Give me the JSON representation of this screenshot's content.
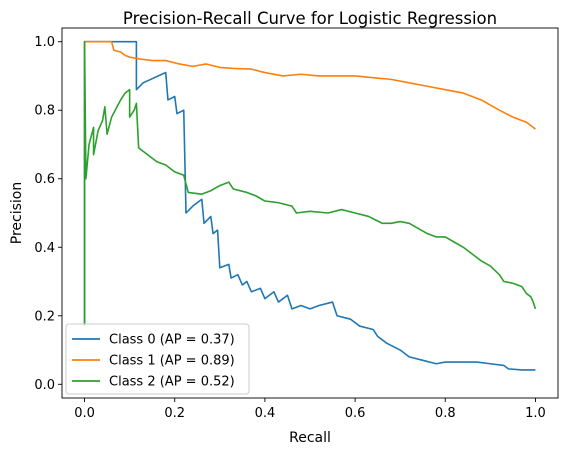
{
  "chart_data": {
    "type": "line",
    "title": "Precision-Recall Curve for Logistic Regression",
    "xlabel": "Recall",
    "ylabel": "Precision",
    "xlim": [
      -0.05,
      1.05
    ],
    "ylim": [
      -0.04,
      1.04
    ],
    "xticks": [
      {
        "value": 0.0,
        "label": "0.0"
      },
      {
        "value": 0.2,
        "label": "0.2"
      },
      {
        "value": 0.4,
        "label": "0.4"
      },
      {
        "value": 0.6,
        "label": "0.6"
      },
      {
        "value": 0.8,
        "label": "0.8"
      },
      {
        "value": 1.0,
        "label": "1.0"
      }
    ],
    "yticks": [
      {
        "value": 0.0,
        "label": "0.0"
      },
      {
        "value": 0.2,
        "label": "0.2"
      },
      {
        "value": 0.4,
        "label": "0.4"
      },
      {
        "value": 0.6,
        "label": "0.6"
      },
      {
        "value": 0.8,
        "label": "0.8"
      },
      {
        "value": 1.0,
        "label": "1.0"
      }
    ],
    "grid": false,
    "legend_position": "lower-left",
    "series": [
      {
        "name": "Class 0 (AP = 0.37)",
        "color": "#1f77b4",
        "points": [
          [
            0.0,
            0.17
          ],
          [
            0.0,
            1.0
          ],
          [
            0.115,
            1.0
          ],
          [
            0.115,
            0.86
          ],
          [
            0.13,
            0.88
          ],
          [
            0.18,
            0.91
          ],
          [
            0.185,
            0.83
          ],
          [
            0.2,
            0.84
          ],
          [
            0.205,
            0.79
          ],
          [
            0.22,
            0.8
          ],
          [
            0.225,
            0.5
          ],
          [
            0.24,
            0.52
          ],
          [
            0.26,
            0.54
          ],
          [
            0.265,
            0.47
          ],
          [
            0.28,
            0.49
          ],
          [
            0.285,
            0.44
          ],
          [
            0.295,
            0.45
          ],
          [
            0.3,
            0.34
          ],
          [
            0.32,
            0.35
          ],
          [
            0.325,
            0.31
          ],
          [
            0.34,
            0.32
          ],
          [
            0.35,
            0.29
          ],
          [
            0.36,
            0.3
          ],
          [
            0.37,
            0.27
          ],
          [
            0.39,
            0.28
          ],
          [
            0.4,
            0.25
          ],
          [
            0.42,
            0.27
          ],
          [
            0.43,
            0.24
          ],
          [
            0.45,
            0.26
          ],
          [
            0.46,
            0.22
          ],
          [
            0.48,
            0.23
          ],
          [
            0.5,
            0.22
          ],
          [
            0.52,
            0.23
          ],
          [
            0.55,
            0.24
          ],
          [
            0.56,
            0.2
          ],
          [
            0.59,
            0.19
          ],
          [
            0.61,
            0.17
          ],
          [
            0.64,
            0.16
          ],
          [
            0.65,
            0.14
          ],
          [
            0.67,
            0.12
          ],
          [
            0.7,
            0.1
          ],
          [
            0.72,
            0.08
          ],
          [
            0.75,
            0.07
          ],
          [
            0.78,
            0.06
          ],
          [
            0.8,
            0.065
          ],
          [
            0.83,
            0.065
          ],
          [
            0.87,
            0.065
          ],
          [
            0.9,
            0.06
          ],
          [
            0.93,
            0.055
          ],
          [
            0.94,
            0.045
          ],
          [
            0.97,
            0.042
          ],
          [
            1.0,
            0.042
          ]
        ]
      },
      {
        "name": "Class 1 (AP = 0.89)",
        "color": "#ff7f0e",
        "points": [
          [
            0.0,
            1.0
          ],
          [
            0.06,
            1.0
          ],
          [
            0.065,
            0.975
          ],
          [
            0.08,
            0.97
          ],
          [
            0.09,
            0.96
          ],
          [
            0.1,
            0.955
          ],
          [
            0.12,
            0.95
          ],
          [
            0.15,
            0.945
          ],
          [
            0.18,
            0.945
          ],
          [
            0.21,
            0.935
          ],
          [
            0.24,
            0.928
          ],
          [
            0.27,
            0.935
          ],
          [
            0.3,
            0.925
          ],
          [
            0.33,
            0.922
          ],
          [
            0.37,
            0.92
          ],
          [
            0.4,
            0.91
          ],
          [
            0.44,
            0.9
          ],
          [
            0.48,
            0.905
          ],
          [
            0.52,
            0.9
          ],
          [
            0.56,
            0.9
          ],
          [
            0.6,
            0.9
          ],
          [
            0.64,
            0.895
          ],
          [
            0.68,
            0.89
          ],
          [
            0.72,
            0.88
          ],
          [
            0.76,
            0.87
          ],
          [
            0.8,
            0.86
          ],
          [
            0.84,
            0.85
          ],
          [
            0.88,
            0.83
          ],
          [
            0.92,
            0.8
          ],
          [
            0.95,
            0.78
          ],
          [
            0.98,
            0.765
          ],
          [
            1.0,
            0.745
          ]
        ]
      },
      {
        "name": "Class 2 (AP = 0.52)",
        "color": "#2ca02c",
        "points": [
          [
            0.0,
            0.17
          ],
          [
            0.0,
            1.0
          ],
          [
            0.003,
            0.6
          ],
          [
            0.01,
            0.7
          ],
          [
            0.02,
            0.75
          ],
          [
            0.02,
            0.67
          ],
          [
            0.03,
            0.74
          ],
          [
            0.04,
            0.77
          ],
          [
            0.045,
            0.81
          ],
          [
            0.05,
            0.73
          ],
          [
            0.06,
            0.78
          ],
          [
            0.08,
            0.83
          ],
          [
            0.09,
            0.85
          ],
          [
            0.1,
            0.86
          ],
          [
            0.1,
            0.78
          ],
          [
            0.11,
            0.8
          ],
          [
            0.115,
            0.82
          ],
          [
            0.12,
            0.69
          ],
          [
            0.14,
            0.67
          ],
          [
            0.16,
            0.65
          ],
          [
            0.18,
            0.64
          ],
          [
            0.2,
            0.62
          ],
          [
            0.22,
            0.61
          ],
          [
            0.23,
            0.56
          ],
          [
            0.26,
            0.555
          ],
          [
            0.28,
            0.565
          ],
          [
            0.3,
            0.58
          ],
          [
            0.32,
            0.59
          ],
          [
            0.33,
            0.57
          ],
          [
            0.36,
            0.56
          ],
          [
            0.38,
            0.55
          ],
          [
            0.4,
            0.535
          ],
          [
            0.43,
            0.53
          ],
          [
            0.46,
            0.52
          ],
          [
            0.47,
            0.5
          ],
          [
            0.5,
            0.505
          ],
          [
            0.54,
            0.5
          ],
          [
            0.57,
            0.51
          ],
          [
            0.6,
            0.5
          ],
          [
            0.63,
            0.49
          ],
          [
            0.66,
            0.47
          ],
          [
            0.68,
            0.47
          ],
          [
            0.7,
            0.475
          ],
          [
            0.72,
            0.47
          ],
          [
            0.74,
            0.455
          ],
          [
            0.76,
            0.44
          ],
          [
            0.78,
            0.43
          ],
          [
            0.8,
            0.43
          ],
          [
            0.82,
            0.415
          ],
          [
            0.84,
            0.4
          ],
          [
            0.86,
            0.38
          ],
          [
            0.88,
            0.36
          ],
          [
            0.9,
            0.345
          ],
          [
            0.92,
            0.32
          ],
          [
            0.93,
            0.3
          ],
          [
            0.95,
            0.295
          ],
          [
            0.97,
            0.285
          ],
          [
            0.98,
            0.265
          ],
          [
            0.99,
            0.255
          ],
          [
            0.995,
            0.24
          ],
          [
            1.0,
            0.22
          ]
        ]
      }
    ]
  }
}
